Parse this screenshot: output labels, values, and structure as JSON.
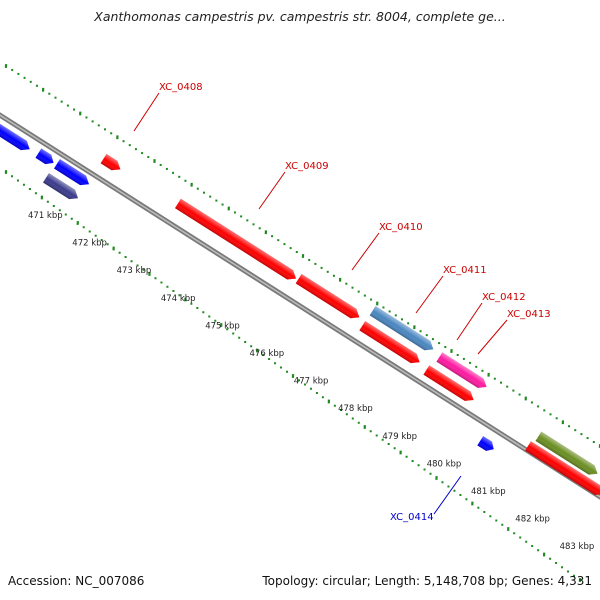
{
  "title": "Xanthomonas campestris pv. campestris str. 8004, complete ge...",
  "footer": {
    "accession": "Accession: NC_007086",
    "summary": "Topology: circular; Length: 5,148,708 bp; Genes: 4,331"
  },
  "ruler": {
    "ticks": [
      "471 kbp",
      "472 kbp",
      "473 kbp",
      "474 kbp",
      "475 kbp",
      "476 kbp",
      "477 kbp",
      "478 kbp",
      "479 kbp",
      "480 kbp",
      "481 kbp",
      "482 kbp",
      "483 kbp"
    ]
  },
  "colors": {
    "backbone": "#8c8c8c",
    "dots": "#1f8a1f",
    "red": "#ff0000",
    "blue": "#0000ff",
    "navy": "#3b3b8c",
    "steel": "#4a86c0",
    "magenta": "#ff1aa0",
    "olive": "#6b8e23",
    "label_red": "#cc0000",
    "label_blue": "#0000cc"
  },
  "gene_labels": [
    {
      "id": "label-xc0408",
      "text": "XC_0408",
      "color": "label_red"
    },
    {
      "id": "label-xc0409",
      "text": "XC_0409",
      "color": "label_red"
    },
    {
      "id": "label-xc0410",
      "text": "XC_0410",
      "color": "label_red"
    },
    {
      "id": "label-xc0411",
      "text": "XC_0411",
      "color": "label_red"
    },
    {
      "id": "label-xc0412",
      "text": "XC_0412",
      "color": "label_red"
    },
    {
      "id": "label-xc0413",
      "text": "XC_0413",
      "color": "label_red"
    },
    {
      "id": "label-xc0414",
      "text": "XC_0414",
      "color": "label_blue"
    }
  ]
}
